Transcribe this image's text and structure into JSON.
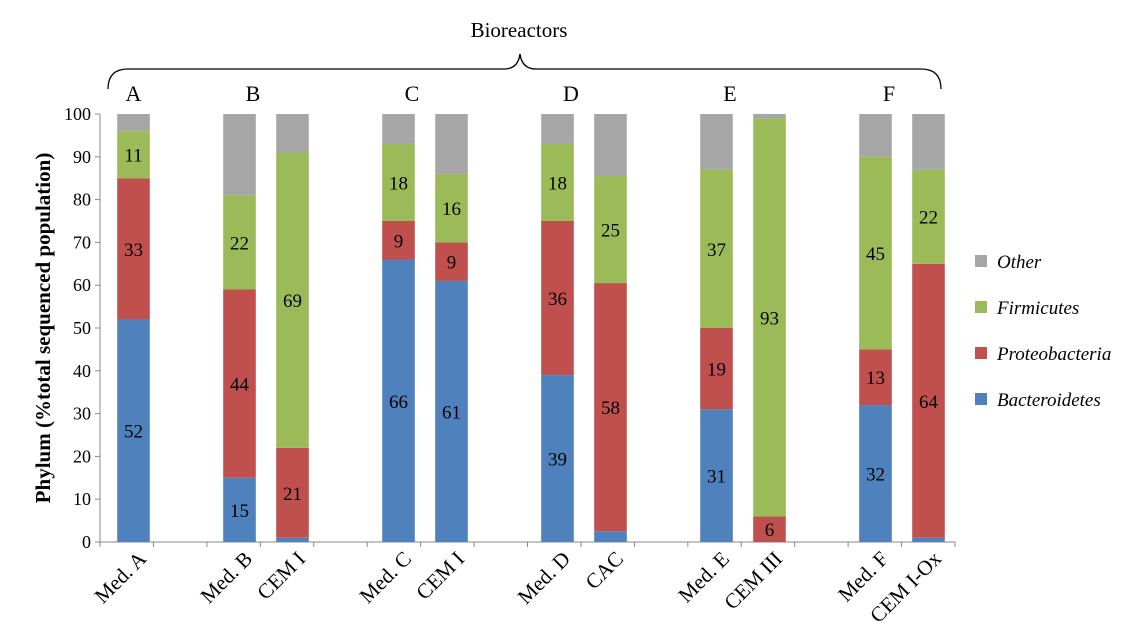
{
  "chart_data": {
    "type": "bar",
    "stacked": true,
    "title": "",
    "annotation": "Bioreactors",
    "xlabel": "",
    "ylabel": "Phylum (%total sequenced population)",
    "ylim": [
      0,
      100
    ],
    "yticks": [
      0,
      10,
      20,
      30,
      40,
      50,
      60,
      70,
      80,
      90,
      100
    ],
    "grid": false,
    "legend_position": "right",
    "groups": [
      {
        "label": "A",
        "categories": [
          "Med. A"
        ]
      },
      {
        "label": "B",
        "categories": [
          "Med. B",
          "CEM I"
        ]
      },
      {
        "label": "C",
        "categories": [
          "Med. C",
          "CEM I"
        ]
      },
      {
        "label": "D",
        "categories": [
          "Med. D",
          "CAC"
        ]
      },
      {
        "label": "E",
        "categories": [
          "Med. E",
          "CEM III"
        ]
      },
      {
        "label": "F",
        "categories": [
          "Med. F",
          "CEM I-Ox"
        ]
      }
    ],
    "categories": [
      "Med. A",
      "Med. B",
      "CEM I",
      "Med. C",
      "CEM I",
      "Med. D",
      "CAC",
      "Med. E",
      "CEM III",
      "Med. F",
      "CEM I-Ox"
    ],
    "series": [
      {
        "name": "Bacteroidetes",
        "color": "#4f81bd",
        "values": [
          52,
          15,
          1,
          66,
          61,
          39,
          2.5,
          31,
          0,
          32,
          1
        ],
        "labels": [
          "52",
          "15",
          "",
          "66",
          "61",
          "39",
          "",
          "31",
          "",
          "32",
          ""
        ]
      },
      {
        "name": "Proteobacteria",
        "color": "#c0504d",
        "values": [
          33,
          44,
          21,
          9,
          9,
          36,
          58,
          19,
          6,
          13,
          64
        ],
        "labels": [
          "33",
          "44",
          "21",
          "9",
          "9",
          "36",
          "58",
          "19",
          "6",
          "13",
          "64"
        ]
      },
      {
        "name": "Firmicutes",
        "color": "#9bbb59",
        "values": [
          11,
          22,
          69,
          18,
          16,
          18,
          25,
          37,
          93,
          45,
          22
        ],
        "labels": [
          "11",
          "22",
          "69",
          "18",
          "16",
          "18",
          "25",
          "37",
          "93",
          "45",
          "22"
        ]
      },
      {
        "name": "Other",
        "color": "#a6a6a6",
        "values": [
          4,
          19,
          9,
          7,
          14,
          7,
          14.5,
          13,
          1,
          10,
          13
        ],
        "labels": [
          "",
          "",
          "",
          "",
          "",
          "",
          "",
          "",
          "",
          "",
          ""
        ]
      }
    ],
    "legend_order": [
      "Other",
      "Firmicutes",
      "Proteobacteria",
      "Bacteroidetes"
    ]
  }
}
